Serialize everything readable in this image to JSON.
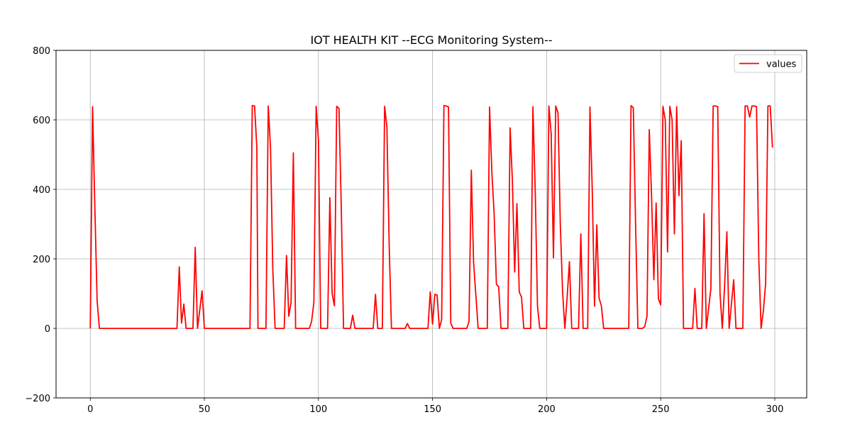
{
  "chart_data": {
    "type": "line",
    "title": "IOT HEALTH KIT --ECG Monitoring System--",
    "xlabel": "",
    "ylabel": "",
    "xlim": [
      -15,
      314
    ],
    "ylim": [
      -200,
      800
    ],
    "xticks": [
      0,
      50,
      100,
      150,
      200,
      250,
      300
    ],
    "yticks": [
      -200,
      0,
      200,
      400,
      600,
      800
    ],
    "xtick_labels": [
      "0",
      "50",
      "100",
      "150",
      "200",
      "250",
      "300"
    ],
    "ytick_labels": [
      "−200",
      "0",
      "200",
      "400",
      "600",
      "800"
    ],
    "grid": true,
    "legend_position": "top-right",
    "series": [
      {
        "name": "values",
        "color": "#ff0000",
        "points": [
          [
            0,
            0
          ],
          [
            1,
            638
          ],
          [
            2,
            350
          ],
          [
            3,
            80
          ],
          [
            4,
            0
          ],
          [
            38,
            0
          ],
          [
            39,
            177
          ],
          [
            40,
            15
          ],
          [
            41,
            70
          ],
          [
            42,
            0
          ],
          [
            45,
            0
          ],
          [
            46,
            233
          ],
          [
            47,
            0
          ],
          [
            49,
            108
          ],
          [
            50,
            0
          ],
          [
            70,
            0
          ],
          [
            71,
            641
          ],
          [
            72,
            640
          ],
          [
            73,
            520
          ],
          [
            73.5,
            0
          ],
          [
            77,
            0
          ],
          [
            78,
            640
          ],
          [
            79,
            520
          ],
          [
            80,
            170
          ],
          [
            81,
            0
          ],
          [
            85,
            0
          ],
          [
            86,
            210
          ],
          [
            87,
            35
          ],
          [
            88,
            75
          ],
          [
            89,
            505
          ],
          [
            90,
            0
          ],
          [
            96,
            0
          ],
          [
            97,
            20
          ],
          [
            98,
            75
          ],
          [
            99,
            639
          ],
          [
            100,
            540
          ],
          [
            101,
            0
          ],
          [
            104,
            0
          ],
          [
            105,
            376
          ],
          [
            106,
            100
          ],
          [
            107,
            65
          ],
          [
            108,
            639
          ],
          [
            109,
            633
          ],
          [
            110,
            350
          ],
          [
            111,
            0
          ],
          [
            114,
            0
          ],
          [
            115,
            38
          ],
          [
            116,
            0
          ],
          [
            124,
            0
          ],
          [
            125,
            98
          ],
          [
            126,
            0
          ],
          [
            128,
            0
          ],
          [
            129,
            639
          ],
          [
            130,
            580
          ],
          [
            131,
            240
          ],
          [
            132,
            0
          ],
          [
            138,
            0
          ],
          [
            139,
            14
          ],
          [
            140,
            0
          ],
          [
            148,
            0
          ],
          [
            149,
            105
          ],
          [
            150,
            12
          ],
          [
            151,
            98
          ],
          [
            152,
            96
          ],
          [
            153,
            0
          ],
          [
            154,
            25
          ],
          [
            155,
            641
          ],
          [
            156,
            640
          ],
          [
            157,
            637
          ],
          [
            158,
            15
          ],
          [
            159,
            0
          ],
          [
            165,
            0
          ],
          [
            166,
            20
          ],
          [
            167,
            455
          ],
          [
            168,
            190
          ],
          [
            169,
            95
          ],
          [
            170,
            0
          ],
          [
            174,
            0
          ],
          [
            175,
            637
          ],
          [
            176,
            450
          ],
          [
            177,
            330
          ],
          [
            178,
            127
          ],
          [
            179,
            120
          ],
          [
            180,
            0
          ],
          [
            183,
            0
          ],
          [
            184,
            577
          ],
          [
            185,
            425
          ],
          [
            186,
            162
          ],
          [
            187,
            359
          ],
          [
            188,
            105
          ],
          [
            189,
            90
          ],
          [
            190,
            0
          ],
          [
            193,
            0
          ],
          [
            194,
            638
          ],
          [
            195,
            400
          ],
          [
            196,
            65
          ],
          [
            197,
            0
          ],
          [
            200,
            0
          ],
          [
            201,
            640
          ],
          [
            202,
            560
          ],
          [
            203,
            203
          ],
          [
            204,
            640
          ],
          [
            205,
            620
          ],
          [
            206,
            300
          ],
          [
            207,
            105
          ],
          [
            208,
            0
          ],
          [
            209,
            90
          ],
          [
            210,
            192
          ],
          [
            211,
            0
          ],
          [
            214,
            0
          ],
          [
            215,
            272
          ],
          [
            216,
            0
          ],
          [
            218,
            0
          ],
          [
            219,
            637
          ],
          [
            220,
            400
          ],
          [
            221,
            64
          ],
          [
            222,
            298
          ],
          [
            223,
            87
          ],
          [
            224,
            65
          ],
          [
            225,
            0
          ],
          [
            236,
            0
          ],
          [
            237,
            641
          ],
          [
            238,
            635
          ],
          [
            239,
            300
          ],
          [
            240,
            0
          ],
          [
            242,
            0
          ],
          [
            243,
            5
          ],
          [
            244,
            35
          ],
          [
            245,
            572
          ],
          [
            246,
            380
          ],
          [
            247,
            140
          ],
          [
            248,
            361
          ],
          [
            249,
            85
          ],
          [
            250,
            68
          ],
          [
            251,
            639
          ],
          [
            252,
            600
          ],
          [
            253,
            220
          ],
          [
            254,
            639
          ],
          [
            255,
            600
          ],
          [
            256,
            272
          ],
          [
            257,
            638
          ],
          [
            258,
            382
          ],
          [
            259,
            540
          ],
          [
            260,
            0
          ],
          [
            264,
            0
          ],
          [
            265,
            115
          ],
          [
            266,
            0
          ],
          [
            268,
            0
          ],
          [
            269,
            330
          ],
          [
            270,
            0
          ],
          [
            272,
            115
          ],
          [
            273,
            640
          ],
          [
            274,
            640
          ],
          [
            275,
            638
          ],
          [
            276,
            100
          ],
          [
            277,
            0
          ],
          [
            278,
            120
          ],
          [
            279,
            278
          ],
          [
            280,
            0
          ],
          [
            281,
            70
          ],
          [
            282,
            140
          ],
          [
            283,
            0
          ],
          [
            286,
            0
          ],
          [
            287,
            640
          ],
          [
            288,
            640
          ],
          [
            289,
            608
          ],
          [
            290,
            640
          ],
          [
            291,
            640
          ],
          [
            292,
            638
          ],
          [
            293,
            200
          ],
          [
            294,
            0
          ],
          [
            295,
            50
          ],
          [
            296,
            130
          ],
          [
            297,
            640
          ],
          [
            298,
            640
          ],
          [
            299,
            520
          ]
        ]
      }
    ]
  }
}
